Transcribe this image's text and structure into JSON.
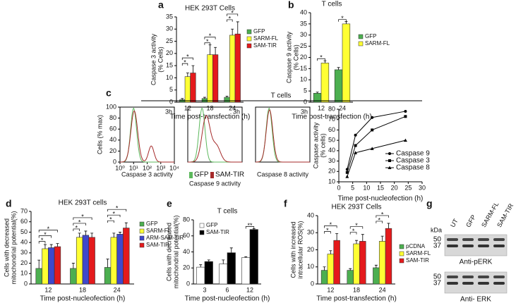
{
  "chart_data": [
    {
      "type": "bar",
      "label": "a",
      "title": "HEK 293T Cells",
      "ylabel": [
        "Caspase 3 activity",
        "(% Cells)"
      ],
      "xlabel": "Time post-transfection (h)",
      "categories": [
        "12",
        "18",
        "24"
      ],
      "series": [
        {
          "name": "GFP",
          "color": "#4caf50",
          "values": [
            1,
            1.5,
            2
          ],
          "errors": [
            0.5,
            0.5,
            0.5
          ]
        },
        {
          "name": "SARM-FL",
          "color": "#ffff33",
          "values": [
            10.5,
            19.5,
            27.5
          ],
          "errors": [
            1.5,
            4,
            2.5
          ]
        },
        {
          "name": "SAM-TIR",
          "color": "#e41a1c",
          "values": [
            12,
            19.5,
            28
          ],
          "errors": [
            3,
            3,
            5
          ]
        }
      ],
      "ylim": [
        0,
        35
      ],
      "yticks": [
        0,
        5,
        10,
        15,
        20,
        25,
        30,
        35
      ],
      "legend": "right",
      "brackets": [
        {
          "category": "12",
          "series": [
            "GFP",
            "SARM-FL"
          ],
          "label": "*"
        },
        {
          "category": "12",
          "series": [
            "GFP",
            "SAM-TIR"
          ],
          "label": "*"
        },
        {
          "category": "18",
          "series": [
            "GFP",
            "SARM-FL"
          ],
          "label": "*"
        },
        {
          "category": "18",
          "series": [
            "GFP",
            "SAM-TIR"
          ],
          "label": "*"
        },
        {
          "category": "24",
          "series": [
            "GFP",
            "SARM-FL"
          ],
          "label": "*"
        },
        {
          "category": "24",
          "series": [
            "GFP",
            "SAM-TIR"
          ],
          "label": "*"
        }
      ]
    },
    {
      "type": "bar",
      "label": "b",
      "title": "T cells",
      "ylabel": [
        "Caspase 9 activity",
        "(% Cells)"
      ],
      "xlabel": "Time post-transfection (h)",
      "categories": [
        "12",
        "24"
      ],
      "series": [
        {
          "name": "GFP",
          "color": "#4caf50",
          "values": [
            4,
            14.5
          ],
          "errors": [
            0.5,
            1
          ]
        },
        {
          "name": "SARM-FL",
          "color": "#ffff33",
          "values": [
            17.5,
            35
          ],
          "errors": [
            1,
            1
          ]
        }
      ],
      "ylim": [
        0,
        40
      ],
      "yticks": [
        0,
        5,
        10,
        15,
        20,
        25,
        30,
        35,
        40
      ],
      "legend": "right",
      "brackets": [
        {
          "category": "12",
          "series": [
            "GFP",
            "SARM-FL"
          ],
          "label": "*"
        },
        {
          "category": "24",
          "series": [
            "GFP",
            "SARM-FL"
          ],
          "label": "*"
        }
      ]
    },
    {
      "type": "flow",
      "label": "c",
      "header": "T cells",
      "annotation": "3h",
      "ylabel": [
        "Cells (% max)"
      ],
      "xlabel": "Caspase 3 activity",
      "colors": [
        "#5cb85c",
        "#a52a2a"
      ],
      "xlog": true,
      "xlim": [
        1,
        10000
      ],
      "xticks": [
        {
          "value": 1,
          "label": "10⁰"
        },
        {
          "value": 10,
          "label": "10¹"
        },
        {
          "value": 100,
          "label": "10²"
        },
        {
          "value": 1000,
          "label": "10³"
        },
        {
          "value": 10000,
          "label": "10⁴"
        }
      ],
      "ylim": [
        0,
        100
      ],
      "yticks": [
        0,
        20,
        40,
        60,
        80,
        100
      ]
    },
    {
      "type": "flow",
      "annotation": "3h",
      "xlabel": "Caspase 9 activity",
      "series": [
        {
          "name": "GFP",
          "color": "#5cb85c"
        },
        {
          "name": "SAM-TIR",
          "color": "#a52a2a"
        }
      ],
      "xlog": true,
      "xlim": [
        1,
        10000
      ],
      "ylim": [
        0,
        100
      ]
    },
    {
      "type": "flow",
      "annotation": "3h",
      "xlabel": "Caspase 8 activity",
      "colors": [
        "#5cb85c",
        "#a52a2a"
      ],
      "xlog": true,
      "xlim": [
        1,
        10000
      ],
      "ylim": [
        0,
        100
      ]
    },
    {
      "type": "line",
      "ylabel": [
        "Caspase activity",
        "(% cells)"
      ],
      "xlabel": "Time post-nucleofection (h)",
      "x": [
        3,
        6,
        12,
        24
      ],
      "series": [
        {
          "name": "Caspase 9",
          "color": "#000000",
          "marker": "circle",
          "values": [
            22,
            55,
            72,
            78
          ]
        },
        {
          "name": "Caspase 3",
          "color": "#000000",
          "marker": "square",
          "values": [
            19,
            45,
            60,
            73
          ]
        },
        {
          "name": "Caspase 8",
          "color": "#000000",
          "marker": "triangle",
          "values": [
            15,
            38,
            42,
            50
          ]
        }
      ],
      "xlim": [
        0,
        30
      ],
      "xticks": [
        0,
        5,
        10,
        15,
        20,
        25,
        30
      ],
      "ylim": [
        10,
        80
      ],
      "yticks": [
        10,
        20,
        30,
        40,
        50,
        60,
        70,
        80
      ],
      "legend": "lower right"
    },
    {
      "type": "bar",
      "label": "d",
      "title": "HEK 293T cells",
      "ylabel": [
        "Cells with decreased",
        "mitochondrial potential(%)"
      ],
      "xlabel": "Time post-nucleofection (h)",
      "categories": [
        "12",
        "18",
        "24"
      ],
      "series": [
        {
          "name": "GFP",
          "color": "#4caf50",
          "values": [
            15,
            15,
            16
          ],
          "errors": [
            8,
            5,
            8
          ]
        },
        {
          "name": "SARM-FL",
          "color": "#ffff33",
          "values": [
            34,
            45,
            45
          ],
          "errors": [
            4,
            4,
            4
          ]
        },
        {
          "name": "ARM-SAM-TIR",
          "color": "#3f48cc",
          "values": [
            35,
            47,
            48
          ],
          "errors": [
            3,
            4,
            2
          ]
        },
        {
          "name": "SAM-TIR",
          "color": "#e41a1c",
          "values": [
            36,
            45,
            54
          ],
          "errors": [
            3,
            4,
            5
          ]
        }
      ],
      "ylim": [
        0,
        70
      ],
      "yticks": [
        0,
        10,
        20,
        30,
        40,
        50,
        60,
        70
      ],
      "legend": "right",
      "brackets": [
        {
          "category": "12",
          "series": [
            "GFP",
            "SARM-FL"
          ],
          "label": "*"
        },
        {
          "category": "12",
          "series": [
            "GFP",
            "ARM-SAM-TIR"
          ],
          "label": "*"
        },
        {
          "category": "12",
          "series": [
            "GFP",
            "SAM-TIR"
          ],
          "label": "*"
        },
        {
          "category": "18",
          "series": [
            "GFP",
            "SARM-FL"
          ],
          "label": "*"
        },
        {
          "category": "18",
          "series": [
            "GFP",
            "ARM-SAM-TIR"
          ],
          "label": "*"
        },
        {
          "category": "18",
          "series": [
            "GFP",
            "SAM-TIR"
          ],
          "label": "*"
        },
        {
          "category": "24",
          "series": [
            "GFP",
            "SARM-FL"
          ],
          "label": "*"
        },
        {
          "category": "24",
          "series": [
            "GFP",
            "ARM-SAM-TIR"
          ],
          "label": "*"
        },
        {
          "category": "24",
          "series": [
            "GFP",
            "SAM-TIR"
          ],
          "label": "*"
        }
      ]
    },
    {
      "type": "bar",
      "label": "e",
      "title": "T cells",
      "ylabel": [
        "Cells with decreased",
        "mitochondrial potential(%)"
      ],
      "xlabel": "Time post-nucleofection (h)",
      "categories": [
        "3",
        "6",
        "12"
      ],
      "series": [
        {
          "name": "GFP",
          "color": "#ffffff",
          "values": [
            21,
            25,
            33
          ],
          "errors": [
            3,
            5,
            1
          ]
        },
        {
          "name": "SAM-TIR",
          "color": "#000000",
          "values": [
            28,
            39,
            68
          ],
          "errors": [
            2,
            6,
            1
          ]
        }
      ],
      "ylim": [
        0,
        80
      ],
      "yticks": [
        0,
        20,
        40,
        60,
        80
      ],
      "legend": "upper left",
      "brackets": [
        {
          "category": "12",
          "series": [
            "GFP",
            "SAM-TIR"
          ],
          "label": "**"
        }
      ]
    },
    {
      "type": "bar",
      "label": "f",
      "title": "HEK 293T Cells",
      "ylabel": [
        "Cells with increased",
        "intracellular ROS(%)"
      ],
      "xlabel": "Time post-transfection (h)",
      "categories": [
        "12",
        "18",
        "24"
      ],
      "series": [
        {
          "name": "pCDNA",
          "color": "#4caf50",
          "values": [
            8,
            8,
            9.5
          ],
          "errors": [
            2,
            1,
            1.5
          ]
        },
        {
          "name": "SARM-FL",
          "color": "#ffff33",
          "values": [
            17.5,
            23.5,
            25
          ],
          "errors": [
            2,
            2,
            3
          ]
        },
        {
          "name": "SAM-TIR",
          "color": "#e41a1c",
          "values": [
            25.5,
            25,
            32.5
          ],
          "errors": [
            4,
            4,
            3
          ]
        }
      ],
      "ylim": [
        0,
        40
      ],
      "yticks": [
        0,
        10,
        20,
        30,
        40
      ],
      "legend": "right",
      "brackets": [
        {
          "category": "12",
          "series": [
            "pCDNA",
            "SARM-FL"
          ],
          "label": "*"
        },
        {
          "category": "12",
          "series": [
            "pCDNA",
            "SAM-TIR"
          ],
          "label": "*"
        },
        {
          "category": "18",
          "series": [
            "pCDNA",
            "SARM-FL"
          ],
          "label": "*"
        },
        {
          "category": "18",
          "series": [
            "pCDNA",
            "SAM-TIR"
          ],
          "label": "*"
        },
        {
          "category": "24",
          "series": [
            "pCDNA",
            "SARM-FL"
          ],
          "label": "*"
        },
        {
          "category": "24",
          "series": [
            "pCDNA",
            "SAM-TIR"
          ],
          "label": "*"
        }
      ]
    },
    {
      "type": "blot",
      "label": "g",
      "unit": "kDa",
      "lanes": [
        "UT",
        "GFP",
        "SARM-FL",
        "SAM-TIR"
      ],
      "blots": [
        {
          "markers": [
            "50",
            "37"
          ],
          "caption": "Anti-pERK"
        },
        {
          "markers": [
            "50",
            "37"
          ],
          "caption": "Anti- ERK"
        }
      ]
    }
  ]
}
